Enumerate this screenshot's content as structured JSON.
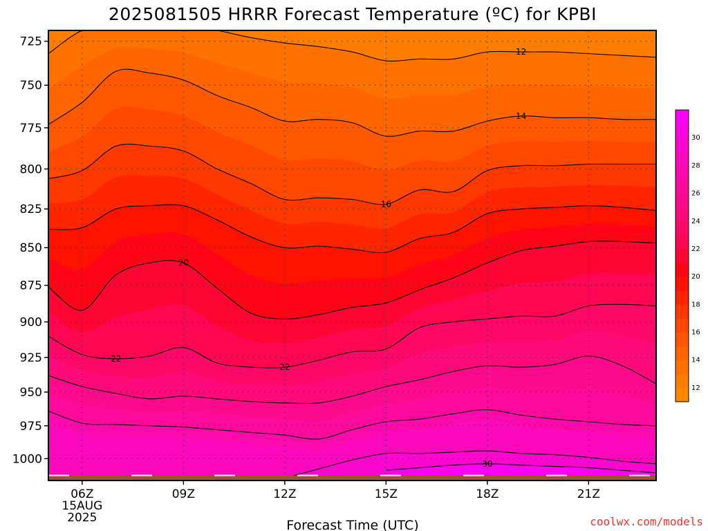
{
  "chart_data": {
    "type": "contour",
    "title": "2025081505 HRRR Forecast Temperature (ºC) for KPBI",
    "xlabel": "Forecast Time (UTC)",
    "ylabel": "",
    "credit": "coolwx.com/models",
    "x_ticks": [
      {
        "hour": 6,
        "label": "06Z",
        "sub1": "15AUG",
        "sub2": "2025"
      },
      {
        "hour": 9,
        "label": "09Z"
      },
      {
        "hour": 12,
        "label": "12Z"
      },
      {
        "hour": 15,
        "label": "15Z"
      },
      {
        "hour": 18,
        "label": "18Z"
      },
      {
        "hour": 21,
        "label": "21Z"
      }
    ],
    "xlim": [
      5,
      23
    ],
    "y_ticks": [
      725,
      750,
      775,
      800,
      825,
      850,
      875,
      900,
      925,
      950,
      975,
      1000
    ],
    "ylim": [
      1017,
      719
    ],
    "yscale": "log",
    "surface_pressure": 1013,
    "colorbar": {
      "ticks": [
        12,
        14,
        16,
        18,
        20,
        22,
        24,
        26,
        28,
        30
      ],
      "levels": [
        11,
        12,
        13,
        14,
        15,
        16,
        17,
        18,
        19,
        20,
        21,
        22,
        23,
        24,
        25,
        26,
        27,
        28,
        29,
        30,
        31,
        32
      ],
      "colors": [
        "#ff8800",
        "#ff7d00",
        "#ff7200",
        "#ff6600",
        "#ff5800",
        "#ff4900",
        "#ff3800",
        "#ff2500",
        "#ff1200",
        "#ff0416",
        "#ff0534",
        "#ff0752",
        "#ff0968",
        "#ff0a7a",
        "#fe0a8c",
        "#fe0a9c",
        "#fd0aac",
        "#fc09bd",
        "#fb07cf",
        "#fb05e0",
        "#fb03f0"
      ]
    },
    "hours": [
      5,
      6,
      7,
      8,
      9,
      10,
      11,
      12,
      13,
      14,
      15,
      16,
      17,
      18,
      19,
      20,
      21,
      22,
      23
    ],
    "isotherms": [
      {
        "level": 12,
        "label": "12",
        "label_hour": 19,
        "pressures": [
          732,
          719,
          716,
          716,
          716,
          719,
          723,
          726,
          728,
          731,
          736,
          735,
          735,
          731,
          731,
          731,
          732,
          733,
          734
        ]
      },
      {
        "level": 14,
        "label": "14",
        "label_hour": 19,
        "pressures": [
          773,
          760,
          742,
          743,
          747,
          756,
          763,
          771,
          770,
          772,
          780,
          777,
          777,
          771,
          768,
          769,
          769,
          770,
          770
        ]
      },
      {
        "level": 16,
        "label": "16",
        "label_hour": 15,
        "pressures": [
          806,
          801,
          786,
          786,
          789,
          800,
          809,
          819,
          818,
          819,
          822,
          813,
          814,
          801,
          798,
          798,
          797,
          797,
          797
        ]
      },
      {
        "level": 18,
        "label": "",
        "label_hour": null,
        "pressures": [
          838,
          837,
          825,
          823,
          823,
          832,
          843,
          850,
          849,
          851,
          853,
          844,
          840,
          828,
          825,
          824,
          823,
          824,
          826
        ]
      },
      {
        "level": 20,
        "label": "20",
        "label_hour": 9,
        "pressures": [
          876,
          892,
          868,
          860,
          860,
          877,
          894,
          898,
          895,
          890,
          887,
          878,
          870,
          860,
          852,
          849,
          846,
          846,
          847
        ]
      },
      {
        "level": 22,
        "label": "22",
        "label_hour": 12,
        "pressures": [
          910,
          923,
          926,
          924,
          918,
          929,
          932,
          932,
          927,
          921,
          919,
          904,
          900,
          898,
          896,
          896,
          889,
          888,
          889
        ]
      },
      {
        "level": 22,
        "label": "22",
        "label_hour": 7,
        "pressures": [
          null,
          null,
          null,
          null,
          null,
          null,
          null,
          null,
          null,
          null,
          null,
          null,
          null,
          null,
          null,
          null,
          null,
          null,
          null
        ]
      },
      {
        "level": 24,
        "label": "",
        "label_hour": null,
        "pressures": [
          938,
          946,
          951,
          955,
          953,
          955,
          957,
          958,
          958,
          953,
          946,
          941,
          935,
          931,
          932,
          930,
          924,
          931,
          944
        ]
      },
      {
        "level": 26,
        "label": "",
        "label_hour": null,
        "pressures": [
          964,
          973,
          974,
          975,
          976,
          978,
          980,
          982,
          985,
          978,
          972,
          970,
          966,
          963,
          967,
          970,
          972,
          974,
          975
        ]
      },
      {
        "level": 28,
        "label": "",
        "label_hour": null,
        "pressures": [
          null,
          null,
          null,
          null,
          null,
          null,
          null,
          1015,
          1008,
          1001,
          996,
          996,
          995,
          994,
          996,
          997,
          999,
          1002,
          1004
        ]
      },
      {
        "level": 30,
        "label": "30",
        "label_hour": 18,
        "pressures": [
          null,
          null,
          null,
          null,
          null,
          null,
          null,
          null,
          null,
          null,
          1009,
          1007,
          1005,
          1004,
          1005,
          1006,
          1007,
          1009,
          1011
        ]
      }
    ]
  }
}
